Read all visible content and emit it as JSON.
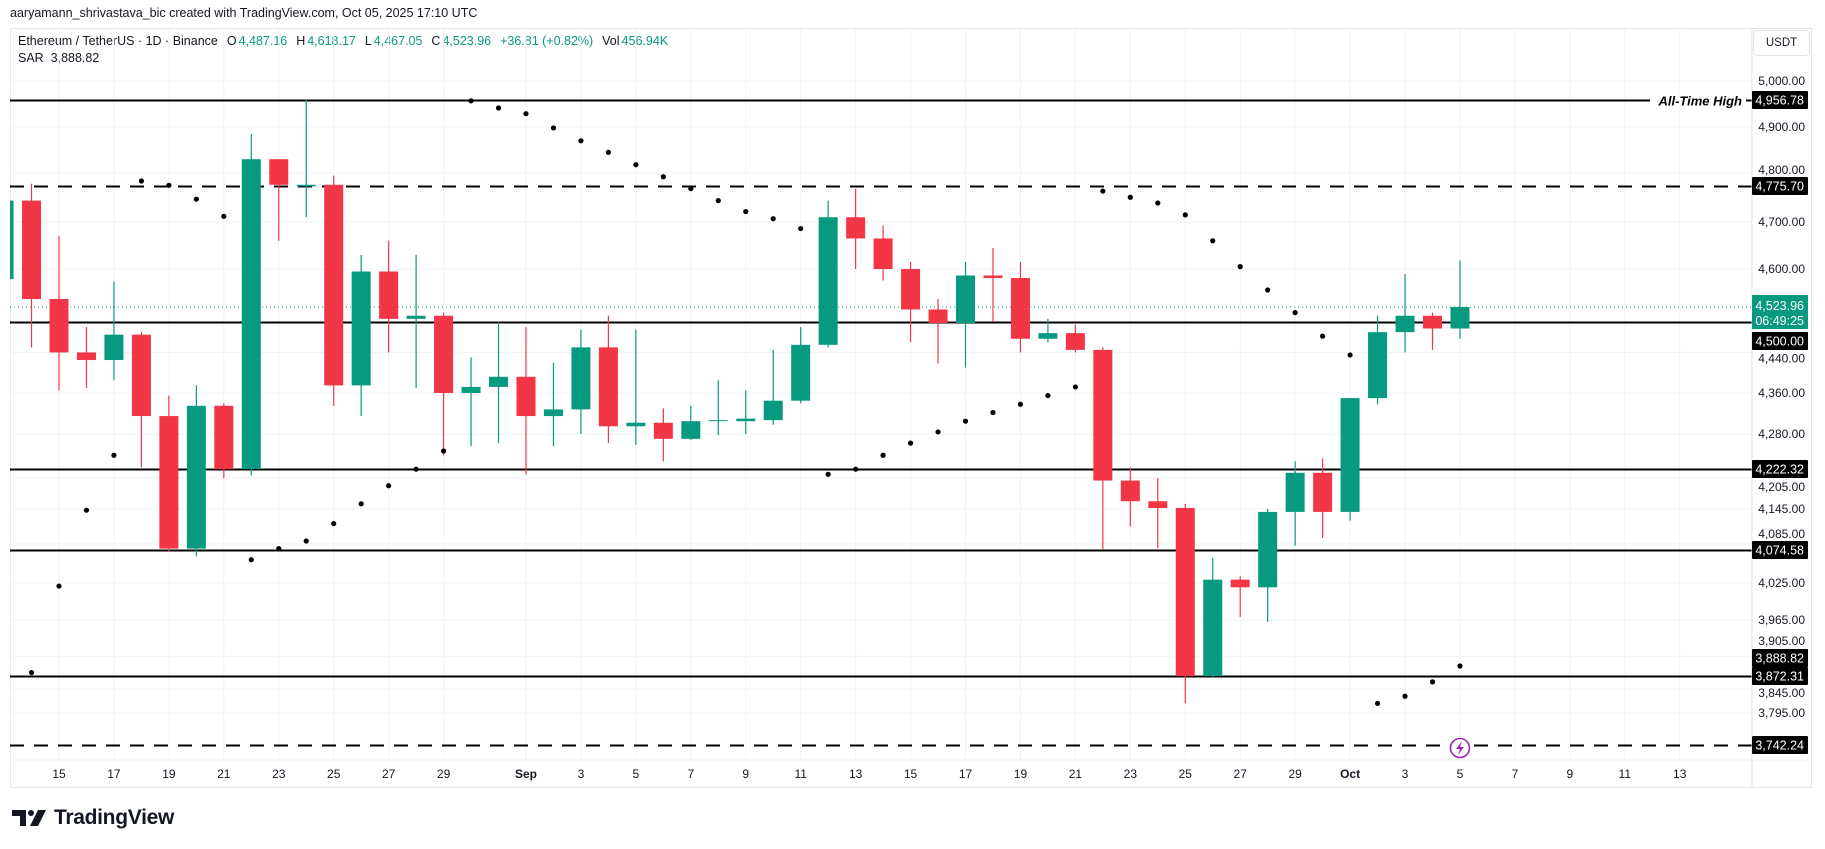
{
  "attribution": "aaryamann_shrivastava_bic created with TradingView.com, Oct 05, 2025 17:10 UTC",
  "legend": {
    "symbol": "Ethereum / TetherUS · 1D · Binance",
    "open_label": "O",
    "open": "4,487.16",
    "high_label": "H",
    "high": "4,618.17",
    "low_label": "L",
    "low": "4,467.05",
    "close_label": "C",
    "close": "4,523.96",
    "change": "+36.81 (+0.82%)",
    "vol_label": "Vol",
    "vol": "456.94K",
    "sar_label": "SAR",
    "sar": "3,888.82"
  },
  "currency_button": "USDT",
  "logo_text": "TradingView",
  "colors": {
    "up": "#089981",
    "down": "#f23645",
    "sar": "#000000",
    "level": "#000000",
    "alert": "#9c27b0"
  },
  "chart_data": {
    "type": "candlestick",
    "title": "",
    "price_scale": "log",
    "grid": true,
    "y_ticks": [
      5000,
      4900,
      4800,
      4700,
      4600,
      4440,
      4360,
      4280,
      4205,
      4145,
      4085,
      4025,
      3965,
      3905,
      3845,
      3795
    ],
    "y_tick_labels": [
      "5,000.00",
      "4,900.00",
      "4,800.00",
      "4,700.00",
      "4,600.00",
      "4,440.00",
      "4,360.00",
      "4,280.00",
      "4,205.00",
      "4,145.00",
      "4,085.00",
      "4,025.00",
      "3,965.00",
      "3,905.00",
      "3,845.00",
      "3,795.00"
    ],
    "x_ticks": [
      {
        "label": "15",
        "date": "2025-08-15"
      },
      {
        "label": "17",
        "date": "2025-08-17"
      },
      {
        "label": "19",
        "date": "2025-08-19"
      },
      {
        "label": "21",
        "date": "2025-08-21"
      },
      {
        "label": "23",
        "date": "2025-08-23"
      },
      {
        "label": "25",
        "date": "2025-08-25"
      },
      {
        "label": "27",
        "date": "2025-08-27"
      },
      {
        "label": "29",
        "date": "2025-08-29"
      },
      {
        "label": "Sep",
        "date": "2025-09-01"
      },
      {
        "label": "3",
        "date": "2025-09-03"
      },
      {
        "label": "5",
        "date": "2025-09-05"
      },
      {
        "label": "7",
        "date": "2025-09-07"
      },
      {
        "label": "9",
        "date": "2025-09-09"
      },
      {
        "label": "11",
        "date": "2025-09-11"
      },
      {
        "label": "13",
        "date": "2025-09-13"
      },
      {
        "label": "15",
        "date": "2025-09-15"
      },
      {
        "label": "17",
        "date": "2025-09-17"
      },
      {
        "label": "19",
        "date": "2025-09-19"
      },
      {
        "label": "21",
        "date": "2025-09-21"
      },
      {
        "label": "23",
        "date": "2025-09-23"
      },
      {
        "label": "25",
        "date": "2025-09-25"
      },
      {
        "label": "27",
        "date": "2025-09-27"
      },
      {
        "label": "29",
        "date": "2025-09-29"
      },
      {
        "label": "Oct",
        "date": "2025-10-01"
      },
      {
        "label": "3",
        "date": "2025-10-03"
      },
      {
        "label": "5",
        "date": "2025-10-05"
      },
      {
        "label": "7",
        "date": "2025-10-07"
      },
      {
        "label": "9",
        "date": "2025-10-09"
      },
      {
        "label": "11",
        "date": "2025-10-11"
      },
      {
        "label": "13",
        "date": "2025-10-13"
      }
    ],
    "candles": [
      [
        "2025-08-13",
        4580,
        4780,
        4560,
        4745
      ],
      [
        "2025-08-14",
        4745,
        4780,
        4450,
        4540
      ],
      [
        "2025-08-15",
        4540,
        4670,
        4365,
        4440
      ],
      [
        "2025-08-16",
        4440,
        4490,
        4370,
        4425
      ],
      [
        "2025-08-17",
        4425,
        4575,
        4385,
        4475
      ],
      [
        "2025-08-18",
        4475,
        4480,
        4225,
        4315
      ],
      [
        "2025-08-19",
        4315,
        4355,
        4072,
        4077
      ],
      [
        "2025-08-20",
        4077,
        4375,
        4065,
        4335
      ],
      [
        "2025-08-21",
        4335,
        4340,
        4205,
        4222
      ],
      [
        "2025-08-22",
        4222,
        4885,
        4210,
        4830
      ],
      [
        "2025-08-23",
        4830,
        4830,
        4660,
        4778
      ],
      [
        "2025-08-24",
        4775,
        4956.78,
        4710,
        4778
      ],
      [
        "2025-08-25",
        4778,
        4795,
        4335,
        4375
      ],
      [
        "2025-08-26",
        4375,
        4630,
        4315,
        4595
      ],
      [
        "2025-08-27",
        4595,
        4660,
        4440,
        4505
      ],
      [
        "2025-08-28",
        4505,
        4630,
        4370,
        4510
      ],
      [
        "2025-08-29",
        4510,
        4515,
        4245,
        4360
      ],
      [
        "2025-08-30",
        4360,
        4430,
        4260,
        4372
      ],
      [
        "2025-08-31",
        4372,
        4500,
        4265,
        4392
      ],
      [
        "2025-09-01",
        4392,
        4490,
        4212,
        4315
      ],
      [
        "2025-09-02",
        4315,
        4420,
        4260,
        4328
      ],
      [
        "2025-09-03",
        4328,
        4485,
        4280,
        4450
      ],
      [
        "2025-09-04",
        4450,
        4510,
        4265,
        4295
      ],
      [
        "2025-09-05",
        4295,
        4485,
        4262,
        4302
      ],
      [
        "2025-09-06",
        4302,
        4330,
        4235,
        4272
      ],
      [
        "2025-09-07",
        4272,
        4335,
        4270,
        4305
      ],
      [
        "2025-09-08",
        4305,
        4385,
        4278,
        4307
      ],
      [
        "2025-09-09",
        4305,
        4365,
        4280,
        4310
      ],
      [
        "2025-09-10",
        4307,
        4445,
        4298,
        4345
      ],
      [
        "2025-09-11",
        4345,
        4490,
        4340,
        4455
      ],
      [
        "2025-09-12",
        4455,
        4745,
        4450,
        4710
      ],
      [
        "2025-09-13",
        4710,
        4770,
        4600,
        4665
      ],
      [
        "2025-09-14",
        4665,
        4693,
        4577,
        4600
      ],
      [
        "2025-09-15",
        4600,
        4615,
        4460,
        4520
      ],
      [
        "2025-09-16",
        4520,
        4540,
        4418,
        4498
      ],
      [
        "2025-09-17",
        4498,
        4615,
        4410,
        4587
      ],
      [
        "2025-09-18",
        4587,
        4645,
        4500,
        4582
      ],
      [
        "2025-09-19",
        4582,
        4615,
        4440,
        4467
      ],
      [
        "2025-09-20",
        4467,
        4505,
        4460,
        4478
      ],
      [
        "2025-09-21",
        4478,
        4495,
        4440,
        4445
      ],
      [
        "2025-09-22",
        4445,
        4450,
        4076,
        4200
      ],
      [
        "2025-09-23",
        4200,
        4225,
        4115,
        4160
      ],
      [
        "2025-09-24",
        4160,
        4205,
        4078,
        4147
      ],
      [
        "2025-09-25",
        4147,
        4155,
        3815,
        3872
      ],
      [
        "2025-09-26",
        3872,
        4063,
        3870,
        4030
      ],
      [
        "2025-09-27",
        4030,
        4035,
        3970,
        4018
      ],
      [
        "2025-09-28",
        4018,
        4145,
        3962,
        4140
      ],
      [
        "2025-09-29",
        4140,
        4235,
        4082,
        4215
      ],
      [
        "2025-09-30",
        4215,
        4240,
        4095,
        4140
      ],
      [
        "2025-10-01",
        4140,
        4350,
        4125,
        4350
      ],
      [
        "2025-10-02",
        4350,
        4510,
        4338,
        4480
      ],
      [
        "2025-10-03",
        4480,
        4590,
        4440,
        4510
      ],
      [
        "2025-10-04",
        4510,
        4515,
        4445,
        4487.16
      ],
      [
        "2025-10-05",
        4487.16,
        4618.17,
        4467.05,
        4523.96
      ]
    ],
    "sar_start": "2025-08-14",
    "sar": [
      3878,
      4020,
      4143,
      4245,
      4785,
      4777,
      4748,
      4712,
      4060,
      4077,
      4090,
      4120,
      4155,
      4190,
      4222,
      4252,
      4955,
      4940,
      4928,
      4898,
      4870,
      4845,
      4818,
      4793,
      4770,
      4745,
      4722,
      4707,
      4686,
      4212,
      4222,
      4245,
      4265,
      4284,
      4305,
      4322,
      4338,
      4355,
      4372,
      4765,
      4752,
      4740,
      4715,
      4660,
      4605,
      4558,
      4515,
      4472,
      4435,
      3815,
      3830,
      3860,
      3888.82
    ],
    "levels": [
      {
        "price": 4956.78,
        "label": "4,956.78",
        "style": "solid",
        "note": "All-Time High"
      },
      {
        "price": 4775.7,
        "label": "4,775.70",
        "style": "dashed"
      },
      {
        "price": 4500.0,
        "label": "4,500.00",
        "style": "solid"
      },
      {
        "price": 4222.32,
        "label": "4,222.32",
        "style": "solid"
      },
      {
        "price": 4074.58,
        "label": "4,074.58",
        "style": "solid"
      },
      {
        "price": 3872.31,
        "label": "3,872.31",
        "style": "solid"
      },
      {
        "price": 3742.24,
        "label": "3,742.24",
        "style": "dashed"
      }
    ],
    "last_price": {
      "price": 4523.96,
      "label": "4,523.96",
      "countdown": "06:49:25"
    },
    "sar_label": {
      "price": 3888.82,
      "label": "3,888.82"
    },
    "alert_marker_date": "2025-10-05"
  }
}
